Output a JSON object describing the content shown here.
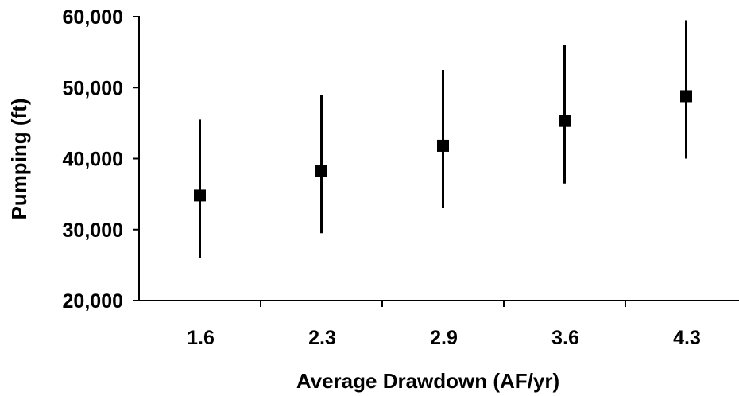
{
  "chart_data": {
    "type": "scatter",
    "title": "",
    "xlabel": "Average Drawdown (AF/yr)",
    "ylabel": "Pumping (ft)",
    "categories": [
      "1.6",
      "2.3",
      "2.9",
      "3.6",
      "4.3"
    ],
    "ylim": [
      20000,
      60000
    ],
    "yticks": [
      20000,
      30000,
      40000,
      50000,
      60000
    ],
    "ytick_labels": [
      "20,000",
      "30,000",
      "40,000",
      "50,000",
      "60,000"
    ],
    "series": [
      {
        "values": [
          34800,
          38300,
          41800,
          45300,
          48800
        ],
        "error_low": [
          26000,
          29500,
          33000,
          36500,
          40000
        ],
        "error_high": [
          45500,
          49000,
          52500,
          56000,
          59500
        ]
      }
    ],
    "grid": false,
    "legend": "none",
    "marker": "square",
    "color": "#000000"
  }
}
